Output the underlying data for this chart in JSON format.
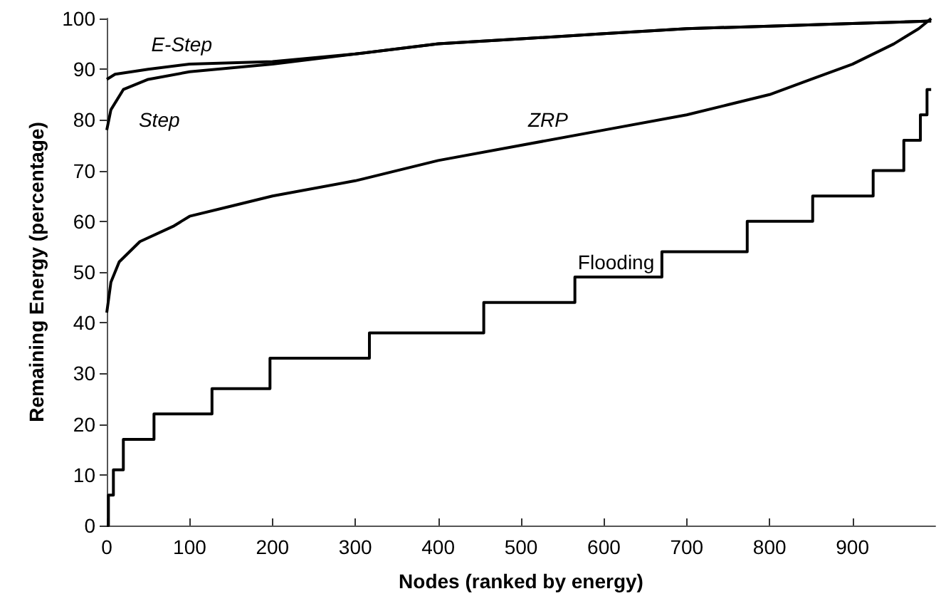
{
  "chart_data": {
    "type": "line",
    "xlabel": "Nodes (ranked by energy)",
    "ylabel": "Remaining Energy (percentage)",
    "xlim": [
      0,
      1000
    ],
    "xticks": [
      0,
      100,
      200,
      300,
      400,
      500,
      600,
      700,
      800,
      900
    ],
    "ylim": [
      0,
      100
    ],
    "yticks": [
      0,
      10,
      20,
      30,
      40,
      50,
      60,
      70,
      80,
      90,
      100
    ],
    "grid": false,
    "legend": false,
    "marker": "none",
    "line_style": "solid",
    "series": [
      {
        "name": "E-Step",
        "color": "#000000",
        "x": [
          0,
          10,
          50,
          100,
          200,
          300,
          400,
          500,
          600,
          700,
          800,
          900,
          995
        ],
        "values": [
          88,
          89,
          90,
          91,
          91.5,
          93,
          95,
          96,
          97,
          98,
          98.5,
          99,
          99.5
        ]
      },
      {
        "name": "Step",
        "color": "#000000",
        "x": [
          0,
          5,
          20,
          50,
          100,
          200,
          300,
          400,
          500,
          600,
          700,
          800,
          900,
          995
        ],
        "values": [
          78,
          82,
          86,
          88,
          89.5,
          91,
          93,
          95,
          96,
          97,
          98,
          98.5,
          99,
          99.5
        ]
      },
      {
        "name": "ZRP",
        "color": "#000000",
        "x": [
          0,
          5,
          15,
          40,
          80,
          100,
          150,
          200,
          300,
          400,
          500,
          600,
          700,
          750,
          800,
          850,
          900,
          950,
          980,
          995
        ],
        "values": [
          42,
          48,
          52,
          56,
          59,
          61,
          63,
          65,
          68,
          72,
          75,
          78,
          81,
          83,
          85,
          88,
          91,
          95,
          98,
          100
        ]
      },
      {
        "name": "Flooding",
        "type": "step",
        "color": "#000000",
        "x": [
          0,
          2,
          8,
          20,
          57,
          127,
          197,
          317,
          455,
          565,
          670,
          773,
          852,
          925,
          962,
          982,
          990,
          995
        ],
        "values": [
          0,
          6,
          11,
          17,
          22,
          27,
          33,
          38,
          44,
          49,
          54,
          60,
          65,
          70,
          76,
          81,
          86,
          86
        ]
      }
    ]
  }
}
